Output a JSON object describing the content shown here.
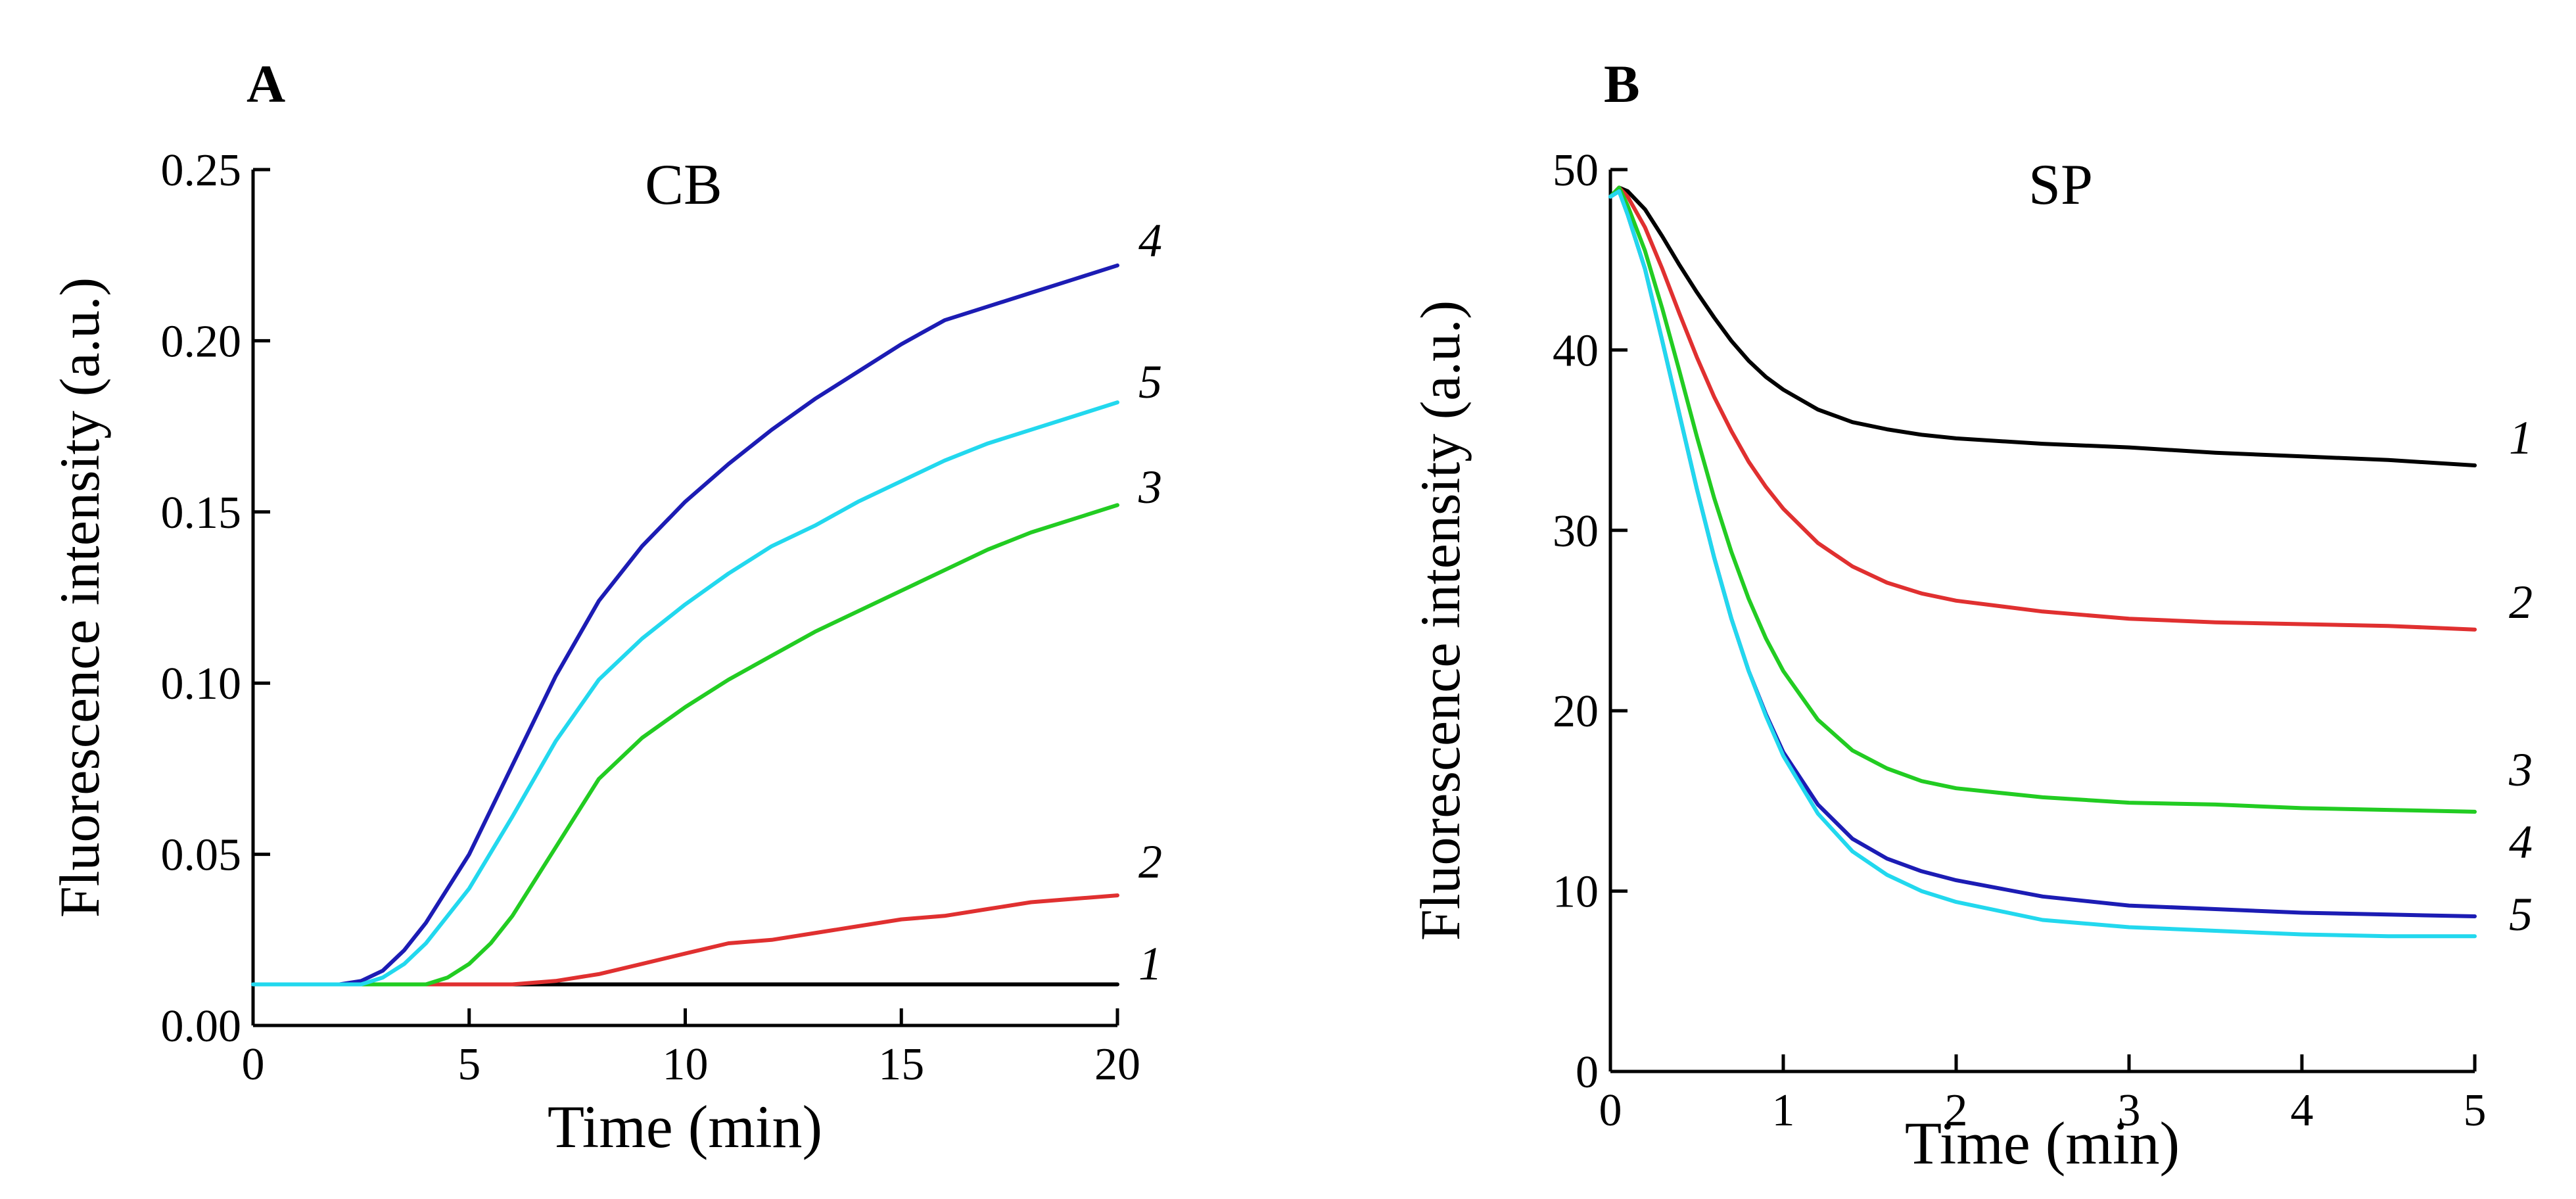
{
  "chart_data": [
    {
      "panel_label": "A",
      "title": "CB",
      "type": "line",
      "xlabel": "Time (min)",
      "ylabel": "Fluorescence intensity (a.u.)",
      "xlim": [
        0,
        20
      ],
      "ylim": [
        0,
        0.25
      ],
      "xticks": [
        "0",
        "5",
        "10",
        "15",
        "20"
      ],
      "yticks": [
        "0.00",
        "0.05",
        "0.10",
        "0.15",
        "0.20",
        "0.25"
      ],
      "grid": false,
      "series": [
        {
          "name": "1",
          "color": "#000000",
          "x": [
            0,
            20
          ],
          "y": [
            0.012,
            0.012
          ]
        },
        {
          "name": "2",
          "color": "#e03030",
          "x": [
            0,
            5,
            6,
            7,
            8,
            9,
            10,
            11,
            12,
            13,
            14,
            15,
            16,
            17,
            18,
            19,
            20
          ],
          "y": [
            0.012,
            0.012,
            0.012,
            0.013,
            0.015,
            0.018,
            0.021,
            0.024,
            0.025,
            0.027,
            0.029,
            0.031,
            0.032,
            0.034,
            0.036,
            0.037,
            0.038
          ]
        },
        {
          "name": "3",
          "color": "#22cc22",
          "x": [
            0,
            4,
            4.5,
            5,
            5.5,
            6,
            7,
            8,
            9,
            10,
            11,
            12,
            13,
            14,
            15,
            16,
            17,
            18,
            19,
            20
          ],
          "y": [
            0.012,
            0.012,
            0.014,
            0.018,
            0.024,
            0.032,
            0.052,
            0.072,
            0.084,
            0.093,
            0.101,
            0.108,
            0.115,
            0.121,
            0.127,
            0.133,
            0.139,
            0.144,
            0.148,
            0.152
          ]
        },
        {
          "name": "4",
          "color": "#1c1cb4",
          "x": [
            0,
            2,
            2.5,
            3,
            3.5,
            4,
            5,
            6,
            7,
            8,
            9,
            10,
            11,
            12,
            13,
            14,
            15,
            16,
            17,
            18,
            19,
            20
          ],
          "y": [
            0.012,
            0.012,
            0.013,
            0.016,
            0.022,
            0.03,
            0.05,
            0.076,
            0.102,
            0.124,
            0.14,
            0.153,
            0.164,
            0.174,
            0.183,
            0.191,
            0.199,
            0.206,
            0.21,
            0.214,
            0.218,
            0.222
          ]
        },
        {
          "name": "5",
          "color": "#22d8ee",
          "x": [
            0,
            2,
            2.5,
            3,
            3.5,
            4,
            5,
            6,
            7,
            8,
            9,
            10,
            11,
            12,
            13,
            14,
            15,
            16,
            17,
            18,
            19,
            20
          ],
          "y": [
            0.012,
            0.012,
            0.012,
            0.014,
            0.018,
            0.024,
            0.04,
            0.061,
            0.083,
            0.101,
            0.113,
            0.123,
            0.132,
            0.14,
            0.146,
            0.153,
            0.159,
            0.165,
            0.17,
            0.174,
            0.178,
            0.182
          ]
        }
      ],
      "curve_labels": [
        {
          "text": "4",
          "italic": true
        },
        {
          "text": "5",
          "italic": true
        },
        {
          "text": "3",
          "italic": true
        },
        {
          "text": "2",
          "italic": true
        },
        {
          "text": "1",
          "italic": true
        }
      ]
    },
    {
      "panel_label": "B",
      "title": "SP",
      "type": "line",
      "xlabel": "Time (min)",
      "ylabel": "Fluorescence intensity (a.u.)",
      "xlim": [
        0,
        5
      ],
      "ylim": [
        0,
        50
      ],
      "xticks": [
        "0",
        "1",
        "2",
        "3",
        "4",
        "5"
      ],
      "yticks": [
        "0",
        "10",
        "20",
        "30",
        "40",
        "50"
      ],
      "grid": false,
      "series": [
        {
          "name": "1",
          "color": "#000000",
          "x": [
            0,
            0.05,
            0.1,
            0.2,
            0.3,
            0.4,
            0.5,
            0.6,
            0.7,
            0.8,
            0.9,
            1.0,
            1.2,
            1.4,
            1.6,
            1.8,
            2.0,
            2.5,
            3.0,
            3.5,
            4.0,
            4.5,
            5.0
          ],
          "y": [
            48.5,
            49.0,
            48.8,
            47.8,
            46.3,
            44.7,
            43.2,
            41.8,
            40.5,
            39.4,
            38.5,
            37.8,
            36.7,
            36.0,
            35.6,
            35.3,
            35.1,
            34.8,
            34.6,
            34.3,
            34.1,
            33.9,
            33.6
          ]
        },
        {
          "name": "2",
          "color": "#e03030",
          "x": [
            0,
            0.05,
            0.1,
            0.2,
            0.3,
            0.4,
            0.5,
            0.6,
            0.7,
            0.8,
            0.9,
            1.0,
            1.2,
            1.4,
            1.6,
            1.8,
            2.0,
            2.5,
            3.0,
            3.5,
            4.0,
            4.5,
            5.0
          ],
          "y": [
            48.5,
            49.0,
            48.5,
            46.8,
            44.5,
            42.0,
            39.6,
            37.4,
            35.5,
            33.8,
            32.4,
            31.2,
            29.3,
            28.0,
            27.1,
            26.5,
            26.1,
            25.5,
            25.1,
            24.9,
            24.8,
            24.7,
            24.5
          ]
        },
        {
          "name": "3",
          "color": "#22cc22",
          "x": [
            0,
            0.05,
            0.1,
            0.2,
            0.3,
            0.4,
            0.5,
            0.6,
            0.7,
            0.8,
            0.9,
            1.0,
            1.2,
            1.4,
            1.6,
            1.8,
            2.0,
            2.5,
            3.0,
            3.5,
            4.0,
            4.5,
            5.0
          ],
          "y": [
            48.5,
            49.0,
            48.0,
            45.5,
            42.3,
            38.8,
            35.2,
            31.8,
            28.8,
            26.2,
            24.0,
            22.2,
            19.5,
            17.8,
            16.8,
            16.1,
            15.7,
            15.2,
            14.9,
            14.8,
            14.6,
            14.5,
            14.4
          ]
        },
        {
          "name": "4",
          "color": "#1c1cb4",
          "x": [
            0,
            0.05,
            0.1,
            0.2,
            0.3,
            0.4,
            0.5,
            0.6,
            0.7,
            0.8,
            0.9,
            1.0,
            1.2,
            1.4,
            1.6,
            1.8,
            2.0,
            2.5,
            3.0,
            3.5,
            4.0,
            4.5,
            5.0
          ],
          "y": [
            48.5,
            48.8,
            47.5,
            44.5,
            40.5,
            36.4,
            32.3,
            28.5,
            25.1,
            22.2,
            19.8,
            17.7,
            14.8,
            12.9,
            11.8,
            11.1,
            10.6,
            9.7,
            9.2,
            9.0,
            8.8,
            8.7,
            8.6
          ]
        },
        {
          "name": "5",
          "color": "#22d8ee",
          "x": [
            0,
            0.05,
            0.1,
            0.2,
            0.3,
            0.4,
            0.5,
            0.6,
            0.7,
            0.8,
            0.9,
            1.0,
            1.2,
            1.4,
            1.6,
            1.8,
            2.0,
            2.5,
            3.0,
            3.5,
            4.0,
            4.5,
            5.0
          ],
          "y": [
            48.5,
            48.8,
            47.5,
            44.5,
            40.5,
            36.4,
            32.3,
            28.5,
            25.1,
            22.2,
            19.7,
            17.5,
            14.3,
            12.2,
            10.9,
            10.0,
            9.4,
            8.4,
            8.0,
            7.8,
            7.6,
            7.5,
            7.5
          ]
        }
      ],
      "curve_labels": [
        {
          "text": "1",
          "italic": true
        },
        {
          "text": "2",
          "italic": true
        },
        {
          "text": "3",
          "italic": true
        },
        {
          "text": "4",
          "italic": true
        },
        {
          "text": "5",
          "italic": true
        }
      ]
    }
  ]
}
